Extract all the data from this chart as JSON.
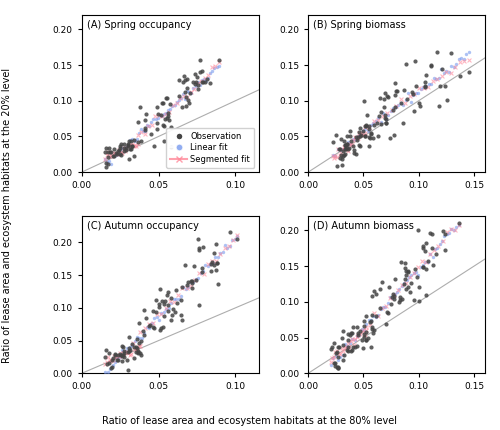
{
  "panels": [
    {
      "label": "A",
      "title": "Spring occupancy",
      "xlim": [
        0.0,
        0.115
      ],
      "ylim": [
        0.0,
        0.22
      ],
      "xticks": [
        0.0,
        0.05,
        0.1
      ],
      "yticks": [
        0.0,
        0.05,
        0.1,
        0.15,
        0.2
      ]
    },
    {
      "label": "B",
      "title": "Spring biomass",
      "xlim": [
        0.0,
        0.16
      ],
      "ylim": [
        0.0,
        0.22
      ],
      "xticks": [
        0.0,
        0.05,
        0.1,
        0.15
      ],
      "yticks": [
        0.0,
        0.05,
        0.1,
        0.15,
        0.2
      ]
    },
    {
      "label": "C",
      "title": "Autumn occupancy",
      "xlim": [
        0.0,
        0.115
      ],
      "ylim": [
        0.0,
        0.24
      ],
      "xticks": [
        0.0,
        0.05,
        0.1
      ],
      "yticks": [
        0.0,
        0.05,
        0.1,
        0.15,
        0.2
      ]
    },
    {
      "label": "D",
      "title": "Autumn biomass",
      "xlim": [
        0.0,
        0.16
      ],
      "ylim": [
        0.0,
        0.22
      ],
      "xticks": [
        0.0,
        0.05,
        0.1,
        0.15
      ],
      "yticks": [
        0.0,
        0.05,
        0.1,
        0.15,
        0.2
      ]
    }
  ],
  "xlabel": "Ratio of lease area and ecosystem habitats at the 80% level",
  "ylabel": "Ratio of lease area and ecosystem habitats at the 20% level",
  "obs_color": "#444444",
  "linear_color": "#7799EE",
  "seg_color": "#FF8899",
  "ref_color": "#999999",
  "dot_size": 9,
  "fit_dot_size": 6
}
